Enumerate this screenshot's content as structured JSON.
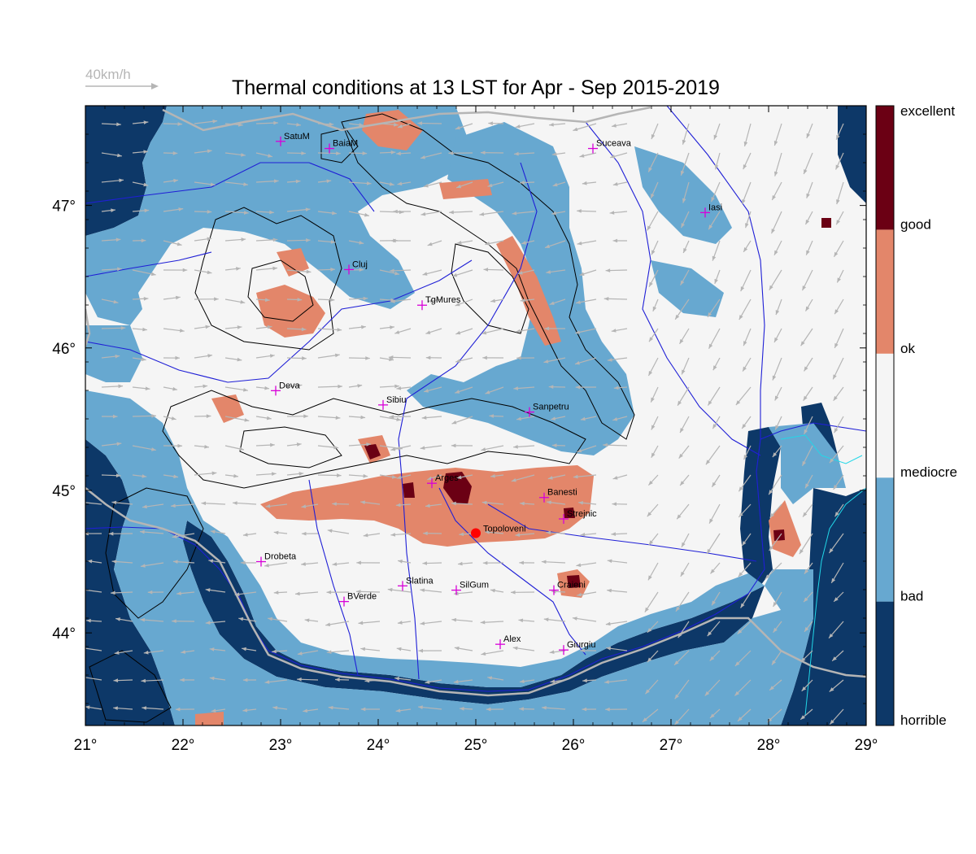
{
  "title": "Thermal conditions at 13 LST for Apr - Sep  2015-2019",
  "wind_reference": {
    "label": "40km/h",
    "color": "#b5b5b5"
  },
  "map": {
    "lon_range": [
      21,
      29
    ],
    "lat_range": [
      43.35,
      47.7
    ],
    "lon_ticks": [
      {
        "value": 21,
        "label": "21°"
      },
      {
        "value": 22,
        "label": "22°"
      },
      {
        "value": 23,
        "label": "23°"
      },
      {
        "value": 24,
        "label": "24°"
      },
      {
        "value": 25,
        "label": "25°"
      },
      {
        "value": 26,
        "label": "26°"
      },
      {
        "value": 27,
        "label": "27°"
      },
      {
        "value": 28,
        "label": "28°"
      },
      {
        "value": 29,
        "label": "29°"
      }
    ],
    "lat_ticks": [
      {
        "value": 44,
        "label": "44°"
      },
      {
        "value": 45,
        "label": "45°"
      },
      {
        "value": 46,
        "label": "46°"
      },
      {
        "value": 47,
        "label": "47°"
      }
    ],
    "rivers_color": "#1f1fd6",
    "contour_color": "#000000",
    "border_color": "#b5b5b5",
    "marker_color": "#d800d8"
  },
  "legend": {
    "classes": [
      {
        "label": "horrible",
        "color": "#0d3868"
      },
      {
        "label": "bad",
        "color": "#67a8d0"
      },
      {
        "label": "mediocre",
        "color": "#f5f5f5"
      },
      {
        "label": "ok",
        "color": "#e3866a"
      },
      {
        "label": "good",
        "color": "#6b0014"
      }
    ],
    "top_label": "excellent"
  },
  "cities": [
    {
      "name": "SatuM",
      "lon": 23.0,
      "lat": 47.45
    },
    {
      "name": "BaiaM",
      "lon": 23.5,
      "lat": 47.4
    },
    {
      "name": "Suceava",
      "lon": 26.2,
      "lat": 47.4
    },
    {
      "name": "Iasi",
      "lon": 27.35,
      "lat": 46.95
    },
    {
      "name": "Cluj",
      "lon": 23.7,
      "lat": 46.55
    },
    {
      "name": "TgMures",
      "lon": 24.45,
      "lat": 46.3
    },
    {
      "name": "Deva",
      "lon": 22.95,
      "lat": 45.7
    },
    {
      "name": "Sibiu",
      "lon": 24.05,
      "lat": 45.6
    },
    {
      "name": "Sanpetru",
      "lon": 25.55,
      "lat": 45.55
    },
    {
      "name": "Arges",
      "lon": 24.55,
      "lat": 45.05
    },
    {
      "name": "Banesti",
      "lon": 25.7,
      "lat": 44.95
    },
    {
      "name": "Strejnic",
      "lon": 25.9,
      "lat": 44.8
    },
    {
      "name": "Drobeta",
      "lon": 22.8,
      "lat": 44.5
    },
    {
      "name": "Slatina",
      "lon": 24.25,
      "lat": 44.33
    },
    {
      "name": "SilGum",
      "lon": 24.8,
      "lat": 44.3
    },
    {
      "name": "Craieni",
      "lon": 25.8,
      "lat": 44.3
    },
    {
      "name": "BVerde",
      "lon": 23.65,
      "lat": 44.22
    },
    {
      "name": "Alex",
      "lon": 25.25,
      "lat": 43.92
    },
    {
      "name": "Giurgiu",
      "lon": 25.9,
      "lat": 43.88
    }
  ],
  "main_site": {
    "name": "Topoloveni",
    "lon": 25.0,
    "lat": 44.7,
    "color": "#ff0000"
  }
}
